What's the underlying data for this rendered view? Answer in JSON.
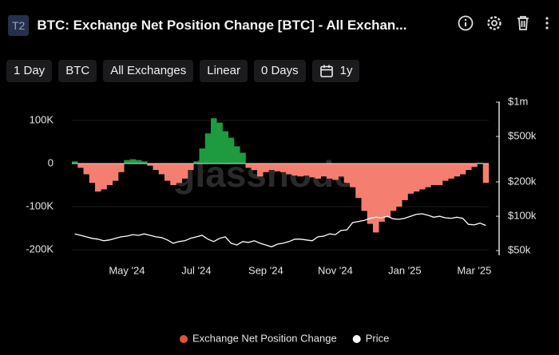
{
  "header": {
    "badge": "T2",
    "title": "BTC: Exchange Net Position Change [BTC] - All Exchan..."
  },
  "toolbar": [
    "1 Day",
    "BTC",
    "All Exchanges",
    "Linear",
    "0 Days",
    "1y"
  ],
  "chart_data": {
    "type": "bar",
    "watermark": "glassnode",
    "categories": [
      null,
      null,
      null,
      null,
      null,
      null,
      null,
      null,
      null,
      "May '24",
      null,
      null,
      null,
      null,
      null,
      null,
      null,
      null,
      null,
      null,
      null,
      "Jul '24",
      null,
      null,
      null,
      null,
      null,
      null,
      null,
      null,
      null,
      null,
      null,
      "Sep '24",
      null,
      null,
      null,
      null,
      null,
      null,
      null,
      null,
      null,
      null,
      null,
      "Nov '24",
      null,
      null,
      null,
      null,
      null,
      null,
      null,
      null,
      null,
      null,
      null,
      "Jan '25",
      null,
      null,
      null,
      null,
      null,
      null,
      null,
      null,
      null,
      null,
      null,
      "Mar '25",
      null,
      null
    ],
    "series": [
      {
        "name": "Exchange Net Position Change",
        "color": "#e0572a",
        "values": [
          5000,
          -10000,
          -25000,
          -45000,
          -65000,
          -60000,
          -50000,
          -40000,
          -20000,
          8000,
          10000,
          8000,
          5000,
          -5000,
          -15000,
          -25000,
          -40000,
          -50000,
          -45000,
          -35000,
          -15000,
          5000,
          35000,
          70000,
          105000,
          95000,
          75000,
          60000,
          40000,
          25000,
          -10000,
          -15000,
          -30000,
          -20000,
          -15000,
          -18000,
          -20000,
          -25000,
          -28000,
          -30000,
          -28000,
          -32000,
          -35000,
          -30000,
          -35000,
          -38000,
          -30000,
          -45000,
          -55000,
          -80000,
          -110000,
          -140000,
          -160000,
          -135000,
          -125000,
          -110000,
          -100000,
          -85000,
          -70000,
          -65000,
          -60000,
          -55000,
          -50000,
          -50000,
          -40000,
          -35000,
          -30000,
          -25000,
          -15000,
          -8000,
          2000,
          -45000
        ]
      },
      {
        "name": "Price",
        "color": "#ffffff",
        "axis": "y2",
        "values": [
          70000,
          68000,
          66000,
          64000,
          63000,
          61000,
          62000,
          64000,
          66000,
          67000,
          69000,
          68000,
          70000,
          68000,
          66000,
          65000,
          62000,
          58000,
          60000,
          61000,
          64000,
          66000,
          68000,
          63000,
          60000,
          64000,
          66000,
          58000,
          56000,
          60000,
          59000,
          61000,
          58000,
          56000,
          54000,
          57000,
          58000,
          60000,
          63000,
          63000,
          62000,
          61000,
          66000,
          67000,
          70000,
          69000,
          75000,
          76000,
          88000,
          90000,
          92000,
          96000,
          98000,
          97000,
          100000,
          95000,
          94000,
          96000,
          100000,
          104000,
          105000,
          102000,
          98000,
          100000,
          97000,
          96000,
          98000,
          96000,
          85000,
          84000,
          87000,
          83000
        ]
      }
    ],
    "positive_color": "#1e9a41",
    "negative_color": "#f47e70",
    "ylim": [
      -213000,
      142600
    ],
    "yticks": [
      {
        "value": 100000,
        "label": "100K"
      },
      0,
      {
        "value": -100000,
        "label": "-100K"
      },
      {
        "value": -200000,
        "label": "-200K"
      }
    ],
    "y2lim": [
      45500,
      1000000
    ],
    "y2scale": "log",
    "y2ticks": [
      {
        "value": 1000000,
        "label": "$1m"
      },
      {
        "value": 500000,
        "label": "$500k"
      },
      {
        "value": 200000,
        "label": "$200k"
      },
      {
        "value": 100000,
        "label": "$100k"
      },
      {
        "value": 50000,
        "label": "$50k"
      }
    ],
    "grid": true
  }
}
